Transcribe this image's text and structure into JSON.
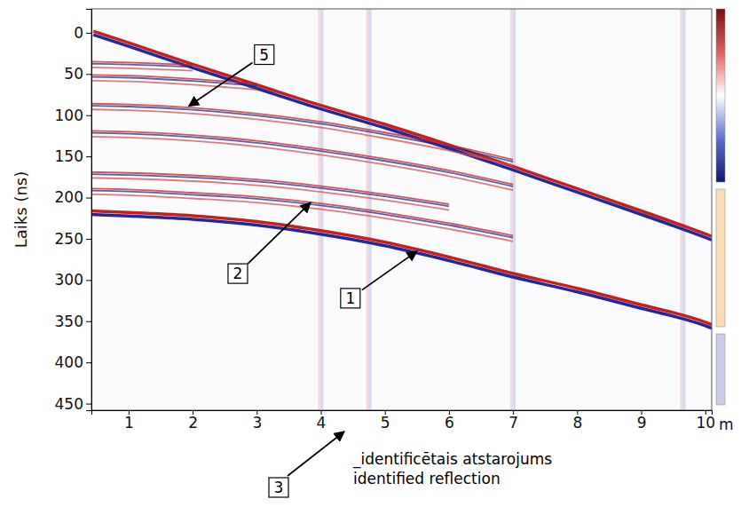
{
  "chart_data": {
    "type": "radargram",
    "ylabel": "Laiks (ns)",
    "xlabel": "m",
    "xlim": [
      0.42,
      10.1
    ],
    "ylim": [
      -29,
      458
    ],
    "xticks": [
      1,
      2,
      3,
      4,
      5,
      6,
      7,
      8,
      9,
      10
    ],
    "yticks": [
      0,
      50,
      100,
      150,
      200,
      250,
      300,
      350,
      400,
      450
    ],
    "grid": false,
    "series": [
      {
        "x": [
          0.45,
          1,
          2,
          3,
          4,
          5,
          6,
          7,
          8,
          9,
          10,
          10.1
        ],
        "values": [
          0,
          14,
          40,
          65,
          90,
          113,
          138,
          164,
          191,
          218,
          246,
          249
        ]
      },
      {
        "x": [
          0.42,
          1,
          2,
          3,
          4,
          5,
          6,
          7,
          8,
          9,
          10,
          10.1
        ],
        "values": [
          218,
          220,
          224,
          231,
          242,
          256,
          274,
          294,
          312,
          332,
          353,
          356
        ]
      },
      {
        "x": [
          0.42,
          1,
          2,
          3,
          4,
          5,
          6,
          7
        ],
        "values": [
          190,
          191,
          195,
          200,
          208,
          219,
          232,
          247
        ]
      },
      {
        "x": [
          0.42,
          1,
          2,
          3,
          4,
          5,
          6
        ],
        "values": [
          170,
          171,
          174,
          179,
          187,
          197,
          209
        ]
      },
      {
        "x": [
          0.42,
          1,
          2,
          3,
          4,
          5,
          6,
          7
        ],
        "values": [
          120,
          121,
          125,
          132,
          142,
          154,
          168,
          185
        ]
      },
      {
        "x": [
          0.42,
          1,
          2,
          3,
          4,
          5,
          6,
          7
        ],
        "values": [
          87,
          88,
          92,
          99,
          109,
          122,
          137,
          155
        ]
      },
      {
        "x": [
          0.42,
          1,
          2,
          3
        ],
        "values": [
          52,
          53,
          57,
          63
        ]
      },
      {
        "x": [
          0.42,
          1,
          2
        ],
        "values": [
          36,
          37,
          40
        ]
      }
    ],
    "artifacts_x": [
      4.0,
      4.75,
      7.0,
      9.65
    ],
    "annotations": [
      {
        "text": "5",
        "x": 1.94,
        "y": 89
      },
      {
        "text": "2",
        "x": 3.84,
        "y": 206
      },
      {
        "text": "1",
        "x": 5.5,
        "y": 265
      }
    ],
    "note": {
      "label": "3",
      "lines": [
        "_identificētais atstarojums",
        "identified reflection"
      ]
    }
  }
}
